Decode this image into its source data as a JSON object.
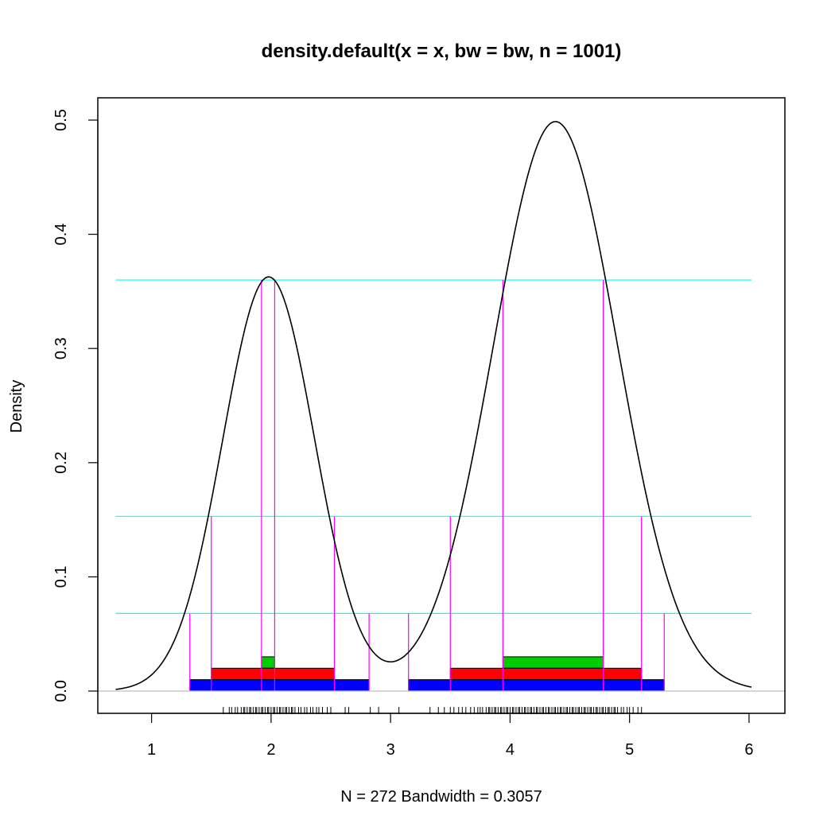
{
  "chart_data": {
    "type": "line",
    "title": "density.default(x = x, bw = bw, n = 1001)",
    "xlabel": "N = 272   Bandwidth = 0.3057",
    "ylabel": "Density",
    "xlim": [
      0.55,
      6.3
    ],
    "ylim": [
      -0.0195,
      0.5195
    ],
    "xticks": [
      1,
      2,
      3,
      4,
      5,
      6
    ],
    "yticks": [
      0.0,
      0.1,
      0.2,
      0.3,
      0.4,
      0.5
    ],
    "ytick_labels": [
      "0.0",
      "0.1",
      "0.2",
      "0.3",
      "0.4",
      "0.5"
    ],
    "density_components": [
      {
        "weight": 0.35,
        "mean": 1.98,
        "sd": 0.385
      },
      {
        "weight": 0.65,
        "mean": 4.38,
        "sd": 0.52
      }
    ],
    "density_range": [
      0.7,
      6.02
    ],
    "hdr_levels": [
      {
        "level": 0.36,
        "color": "#00FFFF",
        "intervals": [
          [
            1.92,
            2.03
          ],
          [
            3.94,
            4.78
          ]
        ],
        "bar_color": "#00CD00",
        "bar_y": [
          0.02,
          0.03
        ]
      },
      {
        "level": 0.153,
        "color": "#00FFFF",
        "intervals": [
          [
            1.5,
            2.53
          ],
          [
            3.5,
            5.1
          ]
        ],
        "bar_color": "#FF0000",
        "bar_y": [
          0.01,
          0.02
        ]
      },
      {
        "level": 0.068,
        "color": "#00FFFF",
        "intervals": [
          [
            1.32,
            2.82
          ],
          [
            3.15,
            5.29
          ]
        ],
        "bar_color": "#0000FF",
        "bar_y": [
          0.0,
          0.01
        ]
      }
    ],
    "hline_xrange": [
      0.7,
      6.02
    ],
    "drop_line_color": "#FF00FF",
    "zero_line_color": "#BEBEBE",
    "rug_color": "#000000",
    "rug": [
      1.6,
      1.65,
      1.67,
      1.7,
      1.72,
      1.75,
      1.77,
      1.78,
      1.8,
      1.82,
      1.83,
      1.85,
      1.87,
      1.88,
      1.9,
      1.92,
      1.93,
      1.95,
      1.97,
      1.98,
      2.0,
      2.02,
      2.03,
      2.05,
      2.07,
      2.08,
      2.1,
      2.12,
      2.13,
      2.15,
      2.17,
      2.18,
      2.2,
      2.23,
      2.25,
      2.28,
      2.3,
      2.33,
      2.35,
      2.38,
      2.4,
      2.43,
      2.47,
      2.5,
      2.62,
      2.65,
      2.83,
      2.9,
      3.07,
      3.33,
      3.4,
      3.45,
      3.5,
      3.53,
      3.57,
      3.6,
      3.63,
      3.67,
      3.7,
      3.73,
      3.75,
      3.77,
      3.8,
      3.82,
      3.83,
      3.85,
      3.87,
      3.88,
      3.9,
      3.92,
      3.93,
      3.95,
      3.97,
      3.98,
      4.0,
      4.02,
      4.03,
      4.05,
      4.07,
      4.08,
      4.1,
      4.12,
      4.13,
      4.15,
      4.17,
      4.18,
      4.2,
      4.22,
      4.23,
      4.25,
      4.27,
      4.28,
      4.3,
      4.32,
      4.33,
      4.35,
      4.37,
      4.38,
      4.4,
      4.42,
      4.43,
      4.45,
      4.47,
      4.48,
      4.5,
      4.52,
      4.53,
      4.55,
      4.57,
      4.58,
      4.6,
      4.62,
      4.63,
      4.65,
      4.67,
      4.68,
      4.7,
      4.72,
      4.73,
      4.75,
      4.77,
      4.78,
      4.8,
      4.82,
      4.83,
      4.85,
      4.87,
      4.88,
      4.9,
      4.93,
      4.95,
      4.98,
      5.0,
      5.03,
      5.07,
      5.1
    ]
  }
}
